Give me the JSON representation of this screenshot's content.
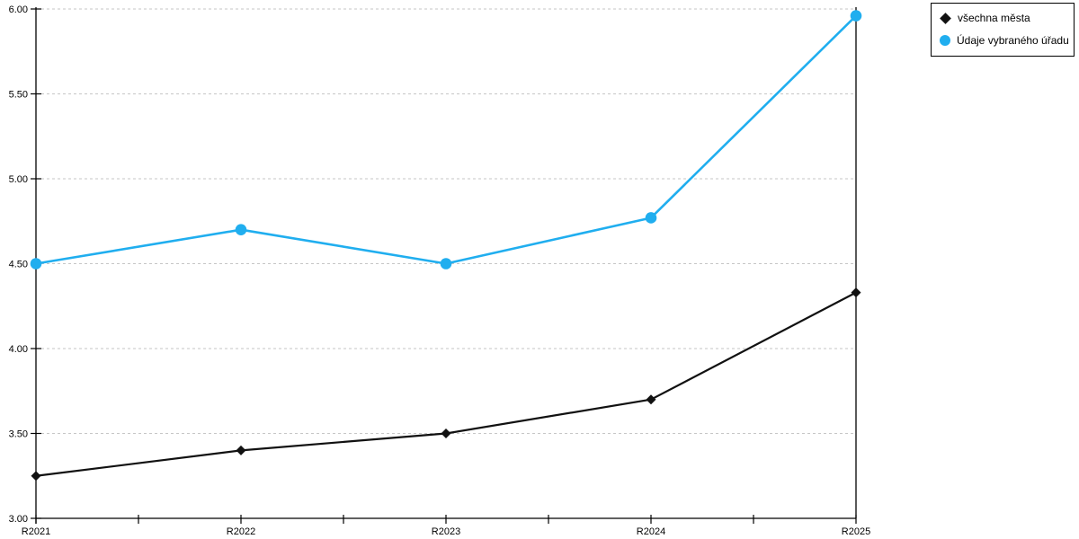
{
  "chart_data": {
    "type": "line",
    "title": "",
    "xlabel": "",
    "ylabel": "",
    "categories": [
      "R2021",
      "R2022",
      "R2023",
      "R2024",
      "R2025"
    ],
    "series": [
      {
        "name": "všechna města",
        "values": [
          3.25,
          3.4,
          3.5,
          3.7,
          4.33
        ],
        "color": "#111111",
        "marker": "diamond"
      },
      {
        "name": "Údaje vybraného úřadu",
        "values": [
          4.5,
          4.7,
          4.5,
          4.77,
          5.96
        ],
        "color": "#20AEEF",
        "marker": "circle"
      }
    ],
    "ylim": [
      3.0,
      6.0
    ],
    "ytick_step": 0.5,
    "ytick_labels": [
      "3.00",
      "3.50",
      "4.00",
      "4.50",
      "5.00",
      "5.50",
      "6.00"
    ],
    "grid": "horizontal-dashed",
    "grid_color": "#c6c6c6",
    "axis_color": "#000000",
    "legend_position": "top-right-outside"
  },
  "legend": {
    "items": [
      {
        "label": "všechna města",
        "marker": "diamond",
        "color": "#111111"
      },
      {
        "label": "Údaje vybraného úřadu",
        "marker": "circle",
        "color": "#20AEEF"
      }
    ]
  }
}
